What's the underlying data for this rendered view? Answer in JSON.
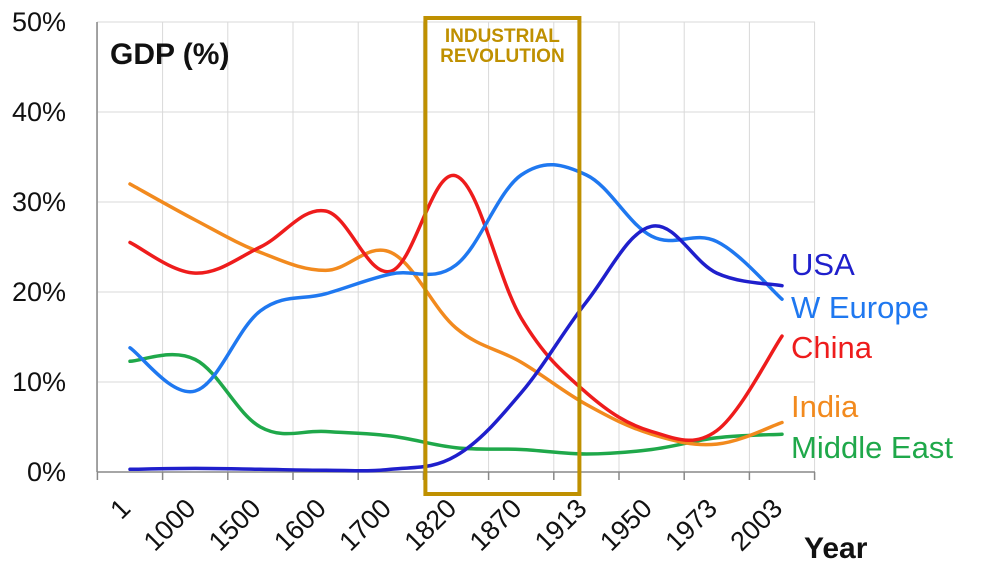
{
  "chart_data": {
    "type": "line",
    "ylabel": "GDP (%)",
    "xlabel": "Year",
    "categories": [
      "1",
      "1000",
      "1500",
      "1600",
      "1700",
      "1820",
      "1870",
      "1913",
      "1950",
      "1973",
      "2003"
    ],
    "ylim": [
      0,
      50
    ],
    "yticks": [
      "0%",
      "10%",
      "20%",
      "30%",
      "40%",
      "50%"
    ],
    "grid": true,
    "annotation": {
      "lines": [
        "INDUSTRIAL",
        "REVOLUTION"
      ],
      "from_category": "1700",
      "to_category": "1913",
      "color": "#bf9000"
    },
    "series": [
      {
        "name": "USA",
        "color": "#1f1fcc",
        "values": [
          0.3,
          0.4,
          0.3,
          0.2,
          0.3,
          1.8,
          8.8,
          18.9,
          27.3,
          22.1,
          20.7
        ]
      },
      {
        "name": "W Europe",
        "color": "#1f78f0",
        "values": [
          13.8,
          9.0,
          17.9,
          19.8,
          22.0,
          23.0,
          33.0,
          33.0,
          26.2,
          25.6,
          19.2
        ]
      },
      {
        "name": "China",
        "color": "#ee1c1c",
        "values": [
          25.5,
          22.1,
          25.0,
          29.0,
          22.3,
          32.9,
          17.1,
          8.8,
          4.5,
          4.6,
          15.1
        ]
      },
      {
        "name": "India",
        "color": "#f28a1e",
        "values": [
          32.0,
          28.0,
          24.4,
          22.4,
          24.4,
          16.0,
          12.2,
          7.5,
          4.2,
          3.1,
          5.5
        ]
      },
      {
        "name": "Middle East",
        "color": "#1fa84a",
        "values": [
          12.3,
          12.5,
          5.0,
          4.5,
          4.0,
          2.7,
          2.5,
          2.0,
          2.5,
          3.8,
          4.2
        ]
      }
    ]
  }
}
